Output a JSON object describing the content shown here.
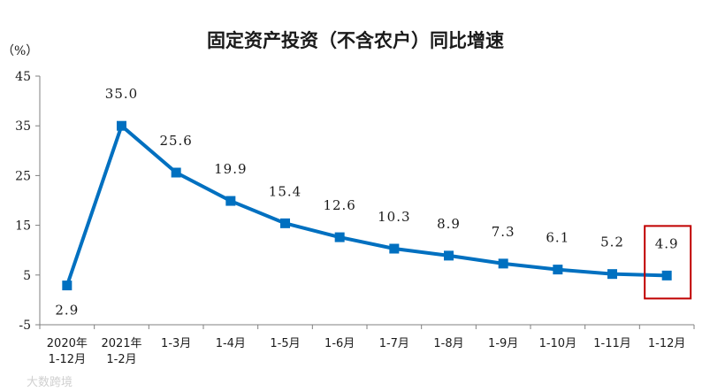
{
  "chart_data": {
    "type": "line",
    "title": "固定资产投资（不含农户）同比增速",
    "unit_label": "（%）",
    "ylim": [
      -5,
      45
    ],
    "yticks": [
      "-5",
      "5",
      "15",
      "25",
      "35",
      "45"
    ],
    "categories": [
      [
        "2020年",
        "1-12月"
      ],
      [
        "2021年",
        "1-2月"
      ],
      [
        "1-3月"
      ],
      [
        "1-4月"
      ],
      [
        "1-5月"
      ],
      [
        "1-6月"
      ],
      [
        "1-7月"
      ],
      [
        "1-8月"
      ],
      [
        "1-9月"
      ],
      [
        "1-10月"
      ],
      [
        "1-11月"
      ],
      [
        "1-12月"
      ]
    ],
    "series": [
      {
        "values": [
          2.9,
          35.0,
          25.6,
          19.9,
          15.4,
          12.6,
          10.3,
          8.9,
          7.3,
          6.1,
          5.2,
          4.9
        ]
      }
    ],
    "data_labels": [
      "2.9",
      "35.0",
      "25.6",
      "19.9",
      "15.4",
      "12.6",
      "10.3",
      "8.9",
      "7.3",
      "6.1",
      "5.2",
      "4.9"
    ],
    "highlight_index": 11,
    "colors": {
      "line": "#0070c0",
      "highlight_box": "#c00000",
      "axis": "#808080"
    },
    "grid": false
  },
  "watermark": "大数跨境"
}
